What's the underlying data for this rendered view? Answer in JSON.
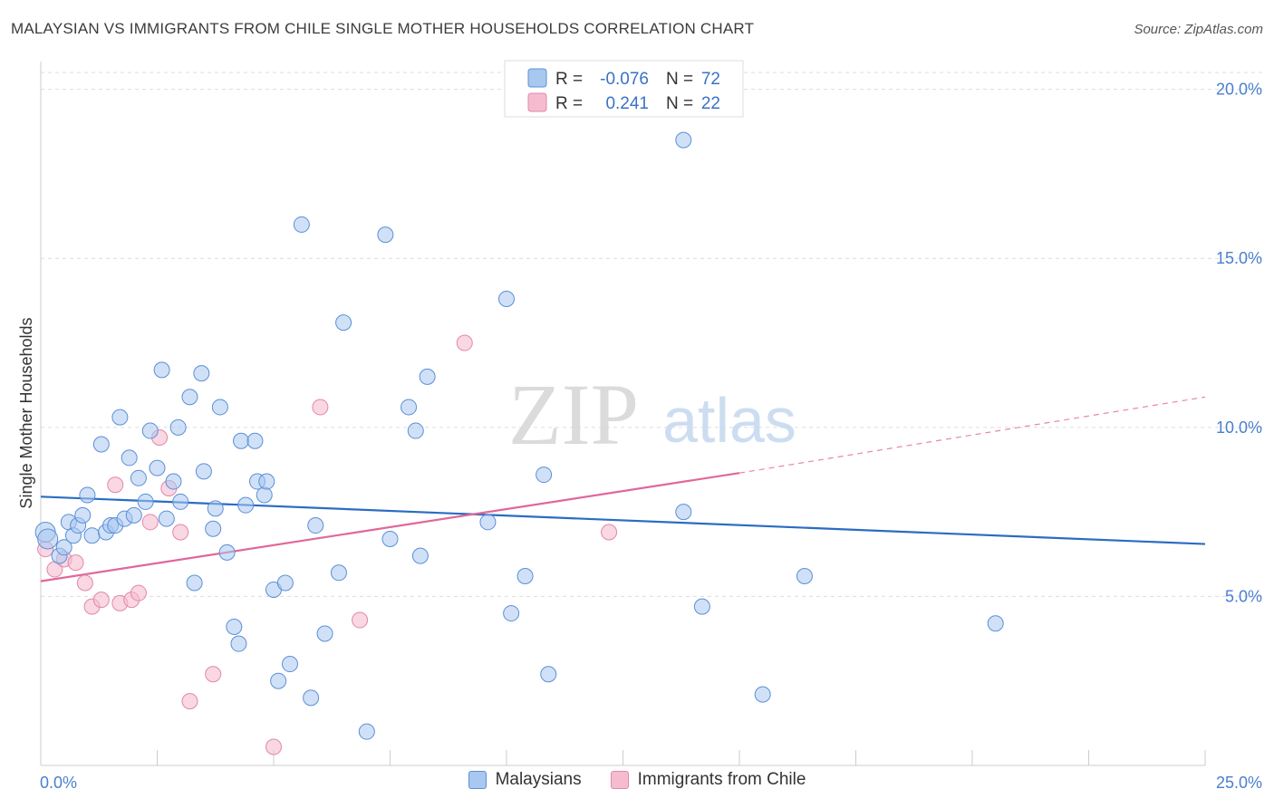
{
  "header": {
    "title": "MALAYSIAN VS IMMIGRANTS FROM CHILE SINGLE MOTHER HOUSEHOLDS CORRELATION CHART",
    "source": "Source: ZipAtlas.com"
  },
  "watermark": {
    "zip": "ZIP",
    "atlas": "atlas"
  },
  "legend": {
    "rows": [
      {
        "r_label": "R =",
        "r_value": "-0.076",
        "n_label": "N =",
        "n_value": "72"
      },
      {
        "r_label": "R =",
        "r_value": "0.241",
        "n_label": "N =",
        "n_value": "22"
      }
    ],
    "bottom": [
      "Malaysians",
      "Immigrants from Chile"
    ]
  },
  "colors": {
    "blue_fill": "#a9c8f0",
    "blue_stroke": "#5b8fd6",
    "blue_line": "#2b6cc4",
    "pink_fill": "#f5bcd0",
    "pink_stroke": "#e387a8",
    "pink_line": "#e0679a",
    "tick_text": "#4a7fcf",
    "grid": "#dcdcdc"
  },
  "chart_data": {
    "type": "scatter",
    "title": "MALAYSIAN VS IMMIGRANTS FROM CHILE SINGLE MOTHER HOUSEHOLDS CORRELATION CHART",
    "xlabel": "",
    "ylabel": "Single Mother Households",
    "xlim": [
      0,
      25
    ],
    "ylim": [
      0,
      20.5
    ],
    "x_tick_labels": [
      "0.0%",
      "25.0%"
    ],
    "y_ticks": [
      5,
      10,
      15,
      20
    ],
    "y_tick_labels": [
      "5.0%",
      "10.0%",
      "15.0%",
      "20.0%"
    ],
    "grid": true,
    "series": [
      {
        "name": "Malaysians",
        "color": "#a9c8f0",
        "r": -0.076,
        "n": 72,
        "trend": {
          "x0": 0,
          "y0": 7.95,
          "x1": 25,
          "y1": 6.55
        },
        "points": [
          [
            0.1,
            6.9
          ],
          [
            0.15,
            6.7
          ],
          [
            0.4,
            6.2
          ],
          [
            0.5,
            6.45
          ],
          [
            0.6,
            7.2
          ],
          [
            0.7,
            6.8
          ],
          [
            0.8,
            7.1
          ],
          [
            0.9,
            7.4
          ],
          [
            1.0,
            8.0
          ],
          [
            1.1,
            6.8
          ],
          [
            1.3,
            9.5
          ],
          [
            1.4,
            6.9
          ],
          [
            1.5,
            7.1
          ],
          [
            1.6,
            7.1
          ],
          [
            1.7,
            10.3
          ],
          [
            1.8,
            7.3
          ],
          [
            1.9,
            9.1
          ],
          [
            2.0,
            7.4
          ],
          [
            2.1,
            8.5
          ],
          [
            2.25,
            7.8
          ],
          [
            2.35,
            9.9
          ],
          [
            2.5,
            8.8
          ],
          [
            2.6,
            11.7
          ],
          [
            2.7,
            7.3
          ],
          [
            2.85,
            8.4
          ],
          [
            2.95,
            10.0
          ],
          [
            3.0,
            7.8
          ],
          [
            3.2,
            10.9
          ],
          [
            3.3,
            5.4
          ],
          [
            3.45,
            11.6
          ],
          [
            3.5,
            8.7
          ],
          [
            3.7,
            7.0
          ],
          [
            3.75,
            7.6
          ],
          [
            3.85,
            10.6
          ],
          [
            4.0,
            6.3
          ],
          [
            4.15,
            4.1
          ],
          [
            4.25,
            3.6
          ],
          [
            4.3,
            9.6
          ],
          [
            4.4,
            7.7
          ],
          [
            4.6,
            9.6
          ],
          [
            4.65,
            8.4
          ],
          [
            4.8,
            8.0
          ],
          [
            4.85,
            8.4
          ],
          [
            5.0,
            5.2
          ],
          [
            5.1,
            2.5
          ],
          [
            5.25,
            5.4
          ],
          [
            5.35,
            3.0
          ],
          [
            5.6,
            16.0
          ],
          [
            5.8,
            2.0
          ],
          [
            5.9,
            7.1
          ],
          [
            6.1,
            3.9
          ],
          [
            6.4,
            5.7
          ],
          [
            6.5,
            13.1
          ],
          [
            7.0,
            1.0
          ],
          [
            7.4,
            15.7
          ],
          [
            7.5,
            6.7
          ],
          [
            7.9,
            10.6
          ],
          [
            8.05,
            9.9
          ],
          [
            8.15,
            6.2
          ],
          [
            8.3,
            11.5
          ],
          [
            9.6,
            7.2
          ],
          [
            10.0,
            13.8
          ],
          [
            10.1,
            4.5
          ],
          [
            10.4,
            5.6
          ],
          [
            10.8,
            8.6
          ],
          [
            10.9,
            2.7
          ],
          [
            13.8,
            18.5
          ],
          [
            13.8,
            7.5
          ],
          [
            14.2,
            4.7
          ],
          [
            15.5,
            2.1
          ],
          [
            16.4,
            5.6
          ],
          [
            20.5,
            4.2
          ]
        ]
      },
      {
        "name": "Immigrants from Chile",
        "color": "#f5bcd0",
        "r": 0.241,
        "n": 22,
        "trend": {
          "x0": 0,
          "y0": 5.45,
          "x1": 15,
          "y1": 8.65
        },
        "trend_dashed": {
          "x0": 15,
          "y0": 8.65,
          "x1": 25,
          "y1": 10.9
        },
        "points": [
          [
            0.1,
            6.4
          ],
          [
            0.3,
            5.8
          ],
          [
            0.5,
            6.1
          ],
          [
            0.75,
            6.0
          ],
          [
            0.95,
            5.4
          ],
          [
            1.1,
            4.7
          ],
          [
            1.3,
            4.9
          ],
          [
            1.6,
            8.3
          ],
          [
            1.7,
            4.8
          ],
          [
            1.95,
            4.9
          ],
          [
            2.1,
            5.1
          ],
          [
            2.35,
            7.2
          ],
          [
            2.55,
            9.7
          ],
          [
            2.75,
            8.2
          ],
          [
            3.0,
            6.9
          ],
          [
            3.7,
            2.7
          ],
          [
            3.2,
            1.9
          ],
          [
            5.0,
            0.55
          ],
          [
            6.0,
            10.6
          ],
          [
            6.85,
            4.3
          ],
          [
            9.1,
            12.5
          ],
          [
            12.2,
            6.9
          ]
        ]
      }
    ]
  }
}
